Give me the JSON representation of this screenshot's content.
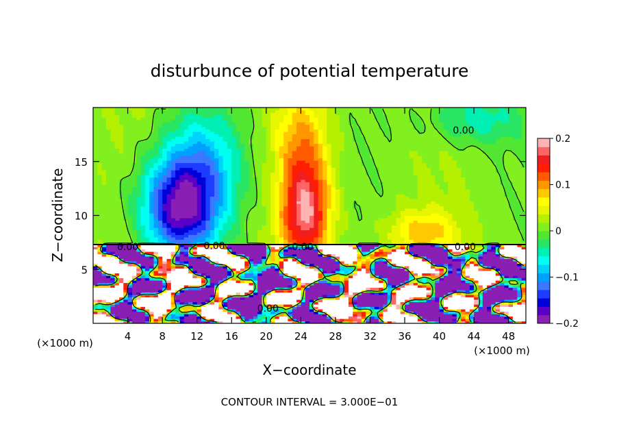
{
  "chart_data": {
    "type": "heatmap",
    "title": "disturbunce of potential temperature",
    "xlabel": "X−coordinate",
    "ylabel": "Z−coordinate",
    "x_unit_label": "(×1000 m)",
    "z_unit_label": "(×1000 m)",
    "footer": "CONTOUR INTERVAL = 3.000E−01",
    "xlim": [
      0,
      50
    ],
    "ylim": [
      0,
      20
    ],
    "x_ticks": [
      4,
      8,
      12,
      16,
      20,
      24,
      28,
      32,
      36,
      40,
      44,
      48
    ],
    "y_ticks": [
      5,
      10,
      15
    ],
    "colorbar": {
      "min": -0.2,
      "max": 0.2,
      "ticks": [
        0.2,
        0.1,
        0,
        -0.1,
        -0.2
      ],
      "tick_labels": [
        "0.2",
        "0.1",
        "0",
        "−0.1",
        "−0.2"
      ],
      "colors": [
        "#8a1fb4",
        "#5a00c8",
        "#0000d8",
        "#1e3cff",
        "#3c78ff",
        "#00a0ff",
        "#00d2ff",
        "#00fff0",
        "#00f0b4",
        "#28e664",
        "#50e632",
        "#82f01e",
        "#b4f000",
        "#e6f500",
        "#ffff00",
        "#ffc800",
        "#ff9600",
        "#ff5a00",
        "#ff1e00",
        "#f01e1e",
        "#ff6464",
        "#ffb4b4"
      ]
    },
    "contour_labels": [
      {
        "text": "0.00",
        "x": 42.8,
        "z": 17.9
      },
      {
        "text": "0.00",
        "x": 4.0,
        "z": 7.1
      },
      {
        "text": "0.00",
        "x": 14.0,
        "z": 7.2
      },
      {
        "text": "0.00",
        "x": 24.2,
        "z": 7.1
      },
      {
        "text": "0.00",
        "x": 43.0,
        "z": 7.1
      },
      {
        "text": "0.00",
        "x": 20.2,
        "z": 1.4
      }
    ],
    "field_features": {
      "upper_layer": [
        {
          "kind": "negative_anomaly",
          "x": 10.0,
          "z": 10.5,
          "sx": 4.5,
          "sz": 4.5,
          "value": -0.18
        },
        {
          "kind": "negative_anomaly",
          "x": 12.5,
          "z": 15.0,
          "sx": 5.0,
          "sz": 5.0,
          "value": -0.08
        },
        {
          "kind": "positive_anomaly",
          "x": 24.5,
          "z": 10.5,
          "sx": 2.8,
          "sz": 5.0,
          "value": 0.17
        },
        {
          "kind": "positive_anomaly",
          "x": 24.0,
          "z": 17.5,
          "sx": 3.0,
          "sz": 4.0,
          "value": 0.06
        },
        {
          "kind": "negative_anomaly",
          "x": 44.0,
          "z": 19.0,
          "sx": 5.5,
          "sz": 2.5,
          "value": -0.06
        },
        {
          "kind": "positive_anomaly",
          "x": 38.0,
          "z": 8.5,
          "sx": 4.0,
          "sz": 2.0,
          "value": 0.07
        }
      ],
      "lower_layer": "turbulent mixed layer below ~7.3 km with values exceeding the colour range"
    }
  }
}
